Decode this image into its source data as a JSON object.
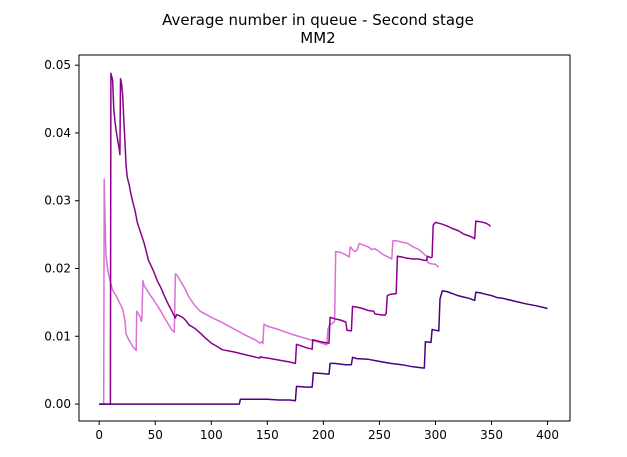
{
  "chart_data": {
    "type": "line",
    "title": "Average number in queue - Second stage",
    "subtitle": "MM2",
    "xlabel": "",
    "ylabel": "",
    "xlim": [
      -18,
      420
    ],
    "ylim": [
      -0.0025,
      0.0515
    ],
    "xticks": [
      0,
      50,
      100,
      150,
      200,
      250,
      300,
      350,
      400
    ],
    "xtick_labels": [
      "0",
      "50",
      "100",
      "150",
      "200",
      "250",
      "300",
      "350",
      "400"
    ],
    "yticks": [
      0.0,
      0.01,
      0.02,
      0.03,
      0.04,
      0.05
    ],
    "ytick_labels": [
      "0.00",
      "0.01",
      "0.02",
      "0.03",
      "0.04",
      "0.05"
    ],
    "grid": false,
    "legend": "none",
    "series": [
      {
        "color": "#da70d6",
        "points": [
          [
            0,
            0
          ],
          [
            4,
            0
          ],
          [
            4.5,
            0.0332
          ],
          [
            6,
            0.022
          ],
          [
            8,
            0.0195
          ],
          [
            10,
            0.018
          ],
          [
            12,
            0.0168
          ],
          [
            15,
            0.016
          ],
          [
            18,
            0.015
          ],
          [
            21,
            0.014
          ],
          [
            23,
            0.0123
          ],
          [
            24,
            0.0103
          ],
          [
            27,
            0.0093
          ],
          [
            30,
            0.0085
          ],
          [
            32,
            0.0081
          ],
          [
            33,
            0.0079
          ],
          [
            33.5,
            0.0137
          ],
          [
            35,
            0.0133
          ],
          [
            37,
            0.0127
          ],
          [
            37.5,
            0.0122
          ],
          [
            38,
            0.0124
          ],
          [
            39,
            0.0182
          ],
          [
            40,
            0.0175
          ],
          [
            42,
            0.017
          ],
          [
            45,
            0.0162
          ],
          [
            48,
            0.0155
          ],
          [
            52,
            0.0145
          ],
          [
            55,
            0.0137
          ],
          [
            58,
            0.0128
          ],
          [
            62,
            0.0117
          ],
          [
            65,
            0.0109
          ],
          [
            67,
            0.0106
          ],
          [
            68,
            0.0192
          ],
          [
            70,
            0.0189
          ],
          [
            73,
            0.018
          ],
          [
            76,
            0.0172
          ],
          [
            80,
            0.0158
          ],
          [
            85,
            0.0146
          ],
          [
            90,
            0.0137
          ],
          [
            100,
            0.0128
          ],
          [
            110,
            0.012
          ],
          [
            120,
            0.0111
          ],
          [
            130,
            0.0102
          ],
          [
            140,
            0.0094
          ],
          [
            143,
            0.009
          ],
          [
            145,
            0.0092
          ],
          [
            146,
            0.0089
          ],
          [
            147,
            0.0118
          ],
          [
            150,
            0.0115
          ],
          [
            160,
            0.011
          ],
          [
            170,
            0.0104
          ],
          [
            180,
            0.0099
          ],
          [
            190,
            0.0094
          ],
          [
            200,
            0.0089
          ],
          [
            203,
            0.0087
          ],
          [
            204,
            0.011
          ],
          [
            205,
            0.0115
          ],
          [
            206,
            0.0117
          ],
          [
            208,
            0.0119
          ],
          [
            210,
            0.0122
          ],
          [
            211,
            0.0225
          ],
          [
            215,
            0.0224
          ],
          [
            220,
            0.022
          ],
          [
            223,
            0.0217
          ],
          [
            224,
            0.0232
          ],
          [
            226,
            0.0228
          ],
          [
            228,
            0.0225
          ],
          [
            230,
            0.0227
          ],
          [
            232,
            0.0237
          ],
          [
            235,
            0.0235
          ],
          [
            240,
            0.0232
          ],
          [
            243,
            0.0228
          ],
          [
            246,
            0.0229
          ],
          [
            249,
            0.0226
          ],
          [
            252,
            0.0222
          ],
          [
            255,
            0.0219
          ],
          [
            258,
            0.0217
          ],
          [
            261,
            0.0214
          ],
          [
            262,
            0.0241
          ],
          [
            265,
            0.0241
          ],
          [
            270,
            0.0239
          ],
          [
            275,
            0.0237
          ],
          [
            280,
            0.0232
          ],
          [
            285,
            0.0228
          ],
          [
            288,
            0.0224
          ],
          [
            292,
            0.0218
          ],
          [
            293,
            0.0209
          ],
          [
            296,
            0.0207
          ],
          [
            300,
            0.0206
          ],
          [
            303,
            0.0202
          ]
        ]
      },
      {
        "color": "#8b008b",
        "points": [
          [
            0,
            0
          ],
          [
            10,
            0
          ],
          [
            10.5,
            0.0488
          ],
          [
            12,
            0.0478
          ],
          [
            13,
            0.0435
          ],
          [
            14,
            0.0418
          ],
          [
            15,
            0.0405
          ],
          [
            16,
            0.0395
          ],
          [
            17,
            0.0385
          ],
          [
            18,
            0.0375
          ],
          [
            18.5,
            0.0368
          ],
          [
            19,
            0.048
          ],
          [
            20,
            0.0472
          ],
          [
            21,
            0.0455
          ],
          [
            22,
            0.042
          ],
          [
            23,
            0.0385
          ],
          [
            24,
            0.0352
          ],
          [
            25,
            0.0335
          ],
          [
            27,
            0.0322
          ],
          [
            28,
            0.0312
          ],
          [
            30,
            0.0298
          ],
          [
            32,
            0.0285
          ],
          [
            34,
            0.0268
          ],
          [
            36,
            0.0258
          ],
          [
            38,
            0.0248
          ],
          [
            40,
            0.0238
          ],
          [
            42,
            0.0225
          ],
          [
            44,
            0.0212
          ],
          [
            46,
            0.0205
          ],
          [
            48,
            0.0198
          ],
          [
            50,
            0.019
          ],
          [
            52,
            0.0181
          ],
          [
            54,
            0.0175
          ],
          [
            56,
            0.0168
          ],
          [
            58,
            0.016
          ],
          [
            60,
            0.0153
          ],
          [
            62,
            0.0146
          ],
          [
            64,
            0.014
          ],
          [
            66,
            0.0133
          ],
          [
            68,
            0.0127
          ],
          [
            69,
            0.0132
          ],
          [
            72,
            0.013
          ],
          [
            75,
            0.0127
          ],
          [
            78,
            0.0122
          ],
          [
            80,
            0.0117
          ],
          [
            85,
            0.0112
          ],
          [
            90,
            0.0105
          ],
          [
            95,
            0.0097
          ],
          [
            100,
            0.009
          ],
          [
            105,
            0.0085
          ],
          [
            110,
            0.008
          ],
          [
            120,
            0.0077
          ],
          [
            130,
            0.0073
          ],
          [
            140,
            0.0069
          ],
          [
            143,
            0.0068
          ],
          [
            144,
            0.007
          ],
          [
            145,
            0.0069
          ],
          [
            150,
            0.0068
          ],
          [
            160,
            0.0065
          ],
          [
            170,
            0.0062
          ],
          [
            175,
            0.006
          ],
          [
            176,
            0.0088
          ],
          [
            180,
            0.0086
          ],
          [
            185,
            0.0083
          ],
          [
            190,
            0.0081
          ],
          [
            190.5,
            0.0095
          ],
          [
            195,
            0.0093
          ],
          [
            200,
            0.0091
          ],
          [
            205,
            0.009
          ],
          [
            206,
            0.0128
          ],
          [
            210,
            0.0126
          ],
          [
            215,
            0.0124
          ],
          [
            220,
            0.0121
          ],
          [
            221,
            0.0109
          ],
          [
            225,
            0.0108
          ],
          [
            226,
            0.0144
          ],
          [
            230,
            0.0143
          ],
          [
            235,
            0.0141
          ],
          [
            240,
            0.0138
          ],
          [
            245,
            0.0137
          ],
          [
            246,
            0.0133
          ],
          [
            250,
            0.0132
          ],
          [
            255,
            0.0131
          ],
          [
            256,
            0.0134
          ],
          [
            257,
            0.016
          ],
          [
            260,
            0.0162
          ],
          [
            265,
            0.0163
          ],
          [
            266,
            0.0218
          ],
          [
            270,
            0.0217
          ],
          [
            275,
            0.0215
          ],
          [
            280,
            0.0214
          ],
          [
            285,
            0.0214
          ],
          [
            290,
            0.0212
          ],
          [
            292,
            0.0212
          ],
          [
            293,
            0.0218
          ],
          [
            296,
            0.0216
          ],
          [
            297,
            0.0217
          ],
          [
            298,
            0.0264
          ],
          [
            300,
            0.0268
          ],
          [
            305,
            0.0266
          ],
          [
            310,
            0.0263
          ],
          [
            315,
            0.0259
          ],
          [
            320,
            0.0256
          ],
          [
            325,
            0.0251
          ],
          [
            330,
            0.0248
          ],
          [
            333,
            0.0246
          ],
          [
            335,
            0.0244
          ],
          [
            336,
            0.027
          ],
          [
            340,
            0.0269
          ],
          [
            345,
            0.0267
          ],
          [
            348,
            0.0264
          ],
          [
            349,
            0.0262
          ]
        ]
      },
      {
        "color": "#4b0082",
        "points": [
          [
            0,
            0
          ],
          [
            125,
            0
          ],
          [
            126,
            0.0007
          ],
          [
            130,
            0.0007
          ],
          [
            140,
            0.0007
          ],
          [
            150,
            0.0007
          ],
          [
            160,
            0.0006
          ],
          [
            170,
            0.0006
          ],
          [
            175,
            0.0005
          ],
          [
            176,
            0.0026
          ],
          [
            185,
            0.0025
          ],
          [
            190,
            0.0025
          ],
          [
            191,
            0.0046
          ],
          [
            200,
            0.0045
          ],
          [
            205,
            0.0044
          ],
          [
            206,
            0.006
          ],
          [
            210,
            0.006
          ],
          [
            215,
            0.0059
          ],
          [
            220,
            0.0058
          ],
          [
            225,
            0.0058
          ],
          [
            226,
            0.0069
          ],
          [
            230,
            0.0067
          ],
          [
            240,
            0.0066
          ],
          [
            250,
            0.0063
          ],
          [
            260,
            0.006
          ],
          [
            270,
            0.0058
          ],
          [
            280,
            0.0055
          ],
          [
            290,
            0.0053
          ],
          [
            291,
            0.0092
          ],
          [
            296,
            0.0091
          ],
          [
            297,
            0.011
          ],
          [
            300,
            0.0109
          ],
          [
            303,
            0.0108
          ],
          [
            304,
            0.0155
          ],
          [
            306,
            0.0167
          ],
          [
            310,
            0.0166
          ],
          [
            315,
            0.0163
          ],
          [
            320,
            0.016
          ],
          [
            325,
            0.0158
          ],
          [
            330,
            0.0156
          ],
          [
            335,
            0.0153
          ],
          [
            336,
            0.0165
          ],
          [
            340,
            0.0164
          ],
          [
            345,
            0.0162
          ],
          [
            350,
            0.016
          ],
          [
            355,
            0.0157
          ],
          [
            360,
            0.0156
          ],
          [
            370,
            0.0152
          ],
          [
            380,
            0.0148
          ],
          [
            390,
            0.0145
          ],
          [
            395,
            0.0143
          ],
          [
            400,
            0.0141
          ]
        ]
      }
    ]
  }
}
